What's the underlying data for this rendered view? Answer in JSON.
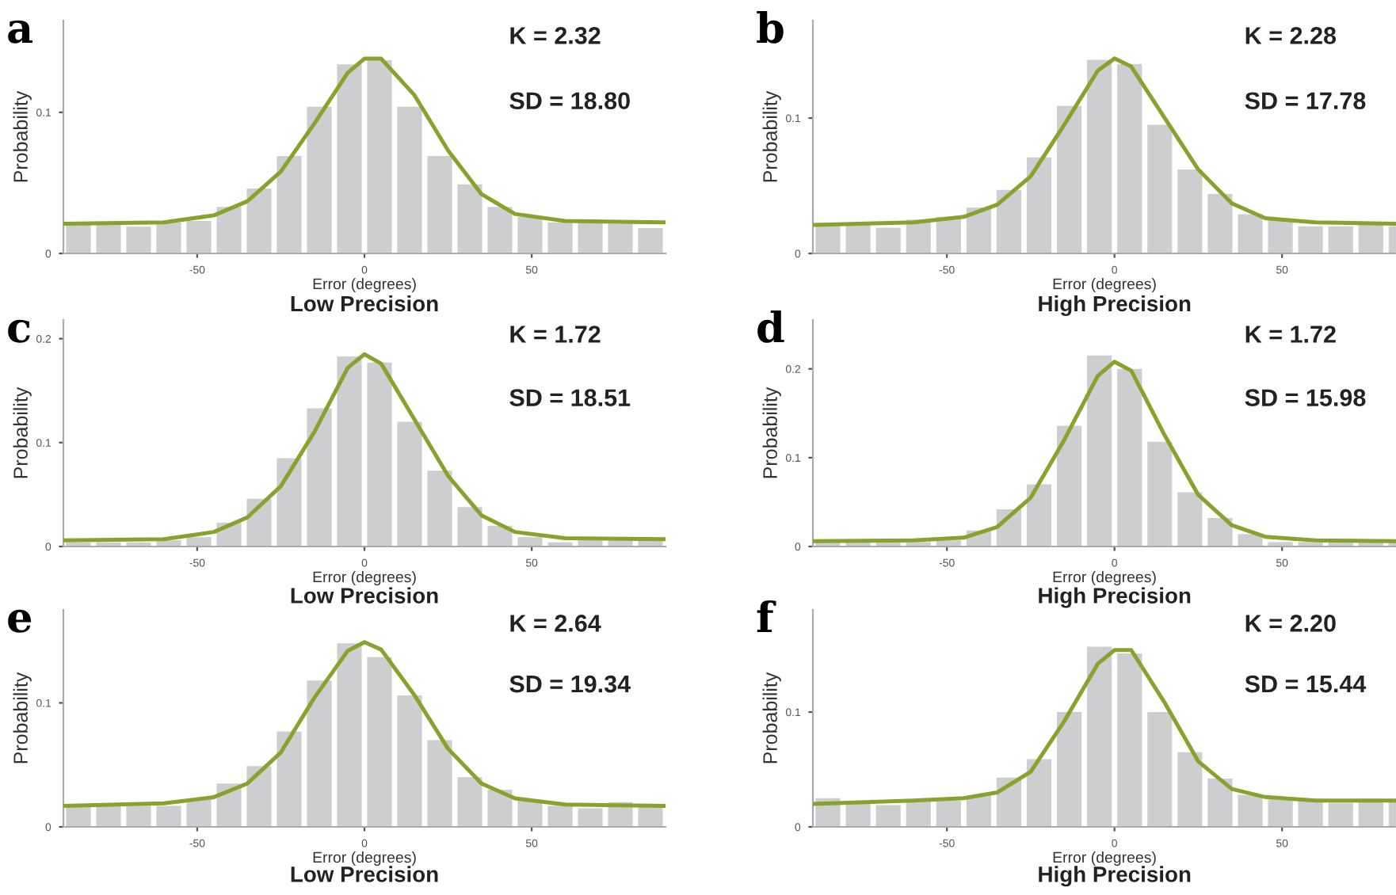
{
  "chart_data": [
    {
      "type": "histogram",
      "xlabel": "Error (degrees)",
      "ylabel": "Probability",
      "annotations": [
        "a",
        "K = 2.32",
        "SD = 18.80",
        "Low Precision"
      ],
      "bins": [
        -90,
        -81,
        -72,
        -63,
        -54,
        -45,
        -36,
        -27,
        -18,
        -9,
        0,
        9,
        18,
        27,
        36,
        45,
        54,
        63,
        72,
        81,
        90
      ],
      "xlim": [
        -90,
        90
      ],
      "xticks": [
        -50,
        0,
        50
      ],
      "ylim": [
        0,
        0.165
      ],
      "yticks": [
        0,
        0.1
      ],
      "grid": false,
      "series": [
        {
          "color": "#cdcecf",
          "values": [
            0.021,
            0.022,
            0.019,
            0.022,
            0.023,
            0.033,
            0.046,
            0.069,
            0.104,
            0.134,
            0.137,
            0.104,
            0.069,
            0.049,
            0.033,
            0.026,
            0.022,
            0.022,
            0.021,
            0.018
          ]
        },
        {
          "type": "line",
          "color": "#86a32e",
          "x": [
            -90,
            -60,
            -45,
            -35,
            -25,
            -15,
            -5,
            0,
            5,
            15,
            25,
            35,
            45,
            60,
            90
          ],
          "values": [
            0.021,
            0.022,
            0.027,
            0.037,
            0.058,
            0.092,
            0.128,
            0.138,
            0.138,
            0.112,
            0.073,
            0.042,
            0.028,
            0.023,
            0.022
          ]
        }
      ]
    },
    {
      "type": "histogram",
      "xlabel": "Error (degrees)",
      "ylabel": "Probability",
      "annotations": [
        "b",
        "K = 2.28",
        "SD = 17.78",
        "High Precision"
      ],
      "bins": [
        -90,
        -81,
        -72,
        -63,
        -54,
        -45,
        -36,
        -27,
        -18,
        -9,
        0,
        9,
        18,
        27,
        36,
        45,
        54,
        63,
        72,
        81,
        90
      ],
      "xlim": [
        -90,
        84
      ],
      "xticks": [
        -50,
        0,
        50
      ],
      "ylim": [
        0,
        0.172
      ],
      "yticks": [
        0,
        0.1
      ],
      "grid": false,
      "series": [
        {
          "color": "#cdcecf",
          "values": [
            0.021,
            0.021,
            0.019,
            0.025,
            0.027,
            0.034,
            0.047,
            0.071,
            0.109,
            0.143,
            0.14,
            0.095,
            0.062,
            0.044,
            0.029,
            0.025,
            0.02,
            0.02,
            0.021,
            0.02
          ]
        },
        {
          "type": "line",
          "color": "#86a32e",
          "x": [
            -90,
            -60,
            -45,
            -35,
            -25,
            -15,
            -5,
            0,
            5,
            15,
            25,
            35,
            45,
            60,
            84
          ],
          "values": [
            0.021,
            0.023,
            0.027,
            0.036,
            0.057,
            0.095,
            0.135,
            0.144,
            0.138,
            0.1,
            0.062,
            0.037,
            0.026,
            0.023,
            0.022
          ]
        }
      ]
    },
    {
      "type": "histogram",
      "xlabel": "Error (degrees)",
      "ylabel": "Probability",
      "annotations": [
        "c",
        "K = 1.72",
        "SD = 18.51",
        "Low Precision"
      ],
      "bins": [
        -90,
        -81,
        -72,
        -63,
        -54,
        -45,
        -36,
        -27,
        -18,
        -9,
        0,
        9,
        18,
        27,
        36,
        45,
        54,
        63,
        72,
        81,
        90
      ],
      "xlim": [
        -90,
        90
      ],
      "xticks": [
        -50,
        0,
        50
      ],
      "ylim": [
        0,
        0.218
      ],
      "yticks": [
        0,
        0.1,
        0.2
      ],
      "grid": false,
      "series": [
        {
          "color": "#cdcecf",
          "values": [
            0.004,
            0.004,
            0.004,
            0.006,
            0.009,
            0.023,
            0.046,
            0.085,
            0.133,
            0.183,
            0.177,
            0.12,
            0.073,
            0.038,
            0.02,
            0.009,
            0.004,
            0.006,
            0.006,
            0.006
          ]
        },
        {
          "type": "line",
          "color": "#86a32e",
          "x": [
            -90,
            -60,
            -45,
            -35,
            -25,
            -15,
            -5,
            0,
            5,
            15,
            25,
            35,
            45,
            60,
            90
          ],
          "values": [
            0.006,
            0.007,
            0.014,
            0.028,
            0.058,
            0.11,
            0.172,
            0.185,
            0.176,
            0.122,
            0.068,
            0.03,
            0.014,
            0.008,
            0.007
          ]
        }
      ]
    },
    {
      "type": "histogram",
      "xlabel": "Error (degrees)",
      "ylabel": "Probability",
      "annotations": [
        "d",
        "K = 1.72",
        "SD = 15.98",
        "High Precision"
      ],
      "bins": [
        -90,
        -81,
        -72,
        -63,
        -54,
        -45,
        -36,
        -27,
        -18,
        -9,
        0,
        9,
        18,
        27,
        36,
        45,
        54,
        63,
        72,
        81,
        90
      ],
      "xlim": [
        -90,
        84
      ],
      "xticks": [
        -50,
        0,
        50
      ],
      "ylim": [
        0,
        0.255
      ],
      "yticks": [
        0,
        0.1,
        0.2
      ],
      "grid": false,
      "series": [
        {
          "color": "#cdcecf",
          "values": [
            0.005,
            0.005,
            0.005,
            0.005,
            0.007,
            0.018,
            0.042,
            0.07,
            0.136,
            0.215,
            0.2,
            0.118,
            0.061,
            0.032,
            0.014,
            0.005,
            0.005,
            0.005,
            0.005,
            0.005
          ]
        },
        {
          "type": "line",
          "color": "#86a32e",
          "x": [
            -90,
            -60,
            -45,
            -35,
            -25,
            -15,
            -5,
            0,
            5,
            15,
            25,
            35,
            45,
            60,
            84
          ],
          "values": [
            0.006,
            0.007,
            0.01,
            0.022,
            0.055,
            0.12,
            0.192,
            0.208,
            0.198,
            0.125,
            0.058,
            0.024,
            0.011,
            0.007,
            0.006
          ]
        }
      ]
    },
    {
      "type": "histogram",
      "xlabel": "Error (degrees)",
      "ylabel": "Probability",
      "annotations": [
        "e",
        "K = 2.64",
        "SD = 19.34",
        "Low Precision"
      ],
      "bins": [
        -90,
        -81,
        -72,
        -63,
        -54,
        -45,
        -36,
        -27,
        -18,
        -9,
        0,
        9,
        18,
        27,
        36,
        45,
        54,
        63,
        72,
        81,
        90
      ],
      "xlim": [
        -90,
        90
      ],
      "xticks": [
        -50,
        0,
        50
      ],
      "ylim": [
        0,
        0.175
      ],
      "yticks": [
        0,
        0.1
      ],
      "grid": false,
      "series": [
        {
          "color": "#cdcecf",
          "values": [
            0.017,
            0.017,
            0.017,
            0.017,
            0.023,
            0.035,
            0.049,
            0.077,
            0.118,
            0.148,
            0.137,
            0.106,
            0.07,
            0.04,
            0.03,
            0.021,
            0.017,
            0.015,
            0.02,
            0.017
          ]
        },
        {
          "type": "line",
          "color": "#86a32e",
          "x": [
            -90,
            -60,
            -45,
            -35,
            -25,
            -15,
            -5,
            0,
            5,
            15,
            25,
            35,
            45,
            60,
            90
          ],
          "values": [
            0.017,
            0.019,
            0.024,
            0.035,
            0.06,
            0.104,
            0.142,
            0.149,
            0.143,
            0.106,
            0.063,
            0.035,
            0.023,
            0.018,
            0.017
          ]
        }
      ]
    },
    {
      "type": "histogram",
      "xlabel": "Error (degrees)",
      "ylabel": "Probability",
      "annotations": [
        "f",
        "K = 2.20",
        "SD = 15.44",
        "High Precision"
      ],
      "bins": [
        -90,
        -81,
        -72,
        -63,
        -54,
        -45,
        -36,
        -27,
        -18,
        -9,
        0,
        9,
        18,
        27,
        36,
        45,
        54,
        63,
        72,
        81,
        90
      ],
      "xlim": [
        -90,
        84
      ],
      "xticks": [
        -50,
        0,
        50
      ],
      "ylim": [
        0,
        0.189
      ],
      "yticks": [
        0,
        0.1
      ],
      "grid": false,
      "series": [
        {
          "color": "#cdcecf",
          "values": [
            0.025,
            0.022,
            0.019,
            0.023,
            0.023,
            0.027,
            0.043,
            0.059,
            0.1,
            0.157,
            0.151,
            0.1,
            0.065,
            0.042,
            0.028,
            0.024,
            0.023,
            0.021,
            0.023,
            0.023
          ]
        },
        {
          "type": "line",
          "color": "#86a32e",
          "x": [
            -90,
            -60,
            -45,
            -35,
            -25,
            -15,
            -5,
            0,
            5,
            15,
            25,
            35,
            45,
            60,
            84
          ],
          "values": [
            0.02,
            0.023,
            0.025,
            0.03,
            0.048,
            0.092,
            0.142,
            0.154,
            0.154,
            0.108,
            0.057,
            0.033,
            0.026,
            0.023,
            0.023
          ]
        }
      ]
    }
  ]
}
